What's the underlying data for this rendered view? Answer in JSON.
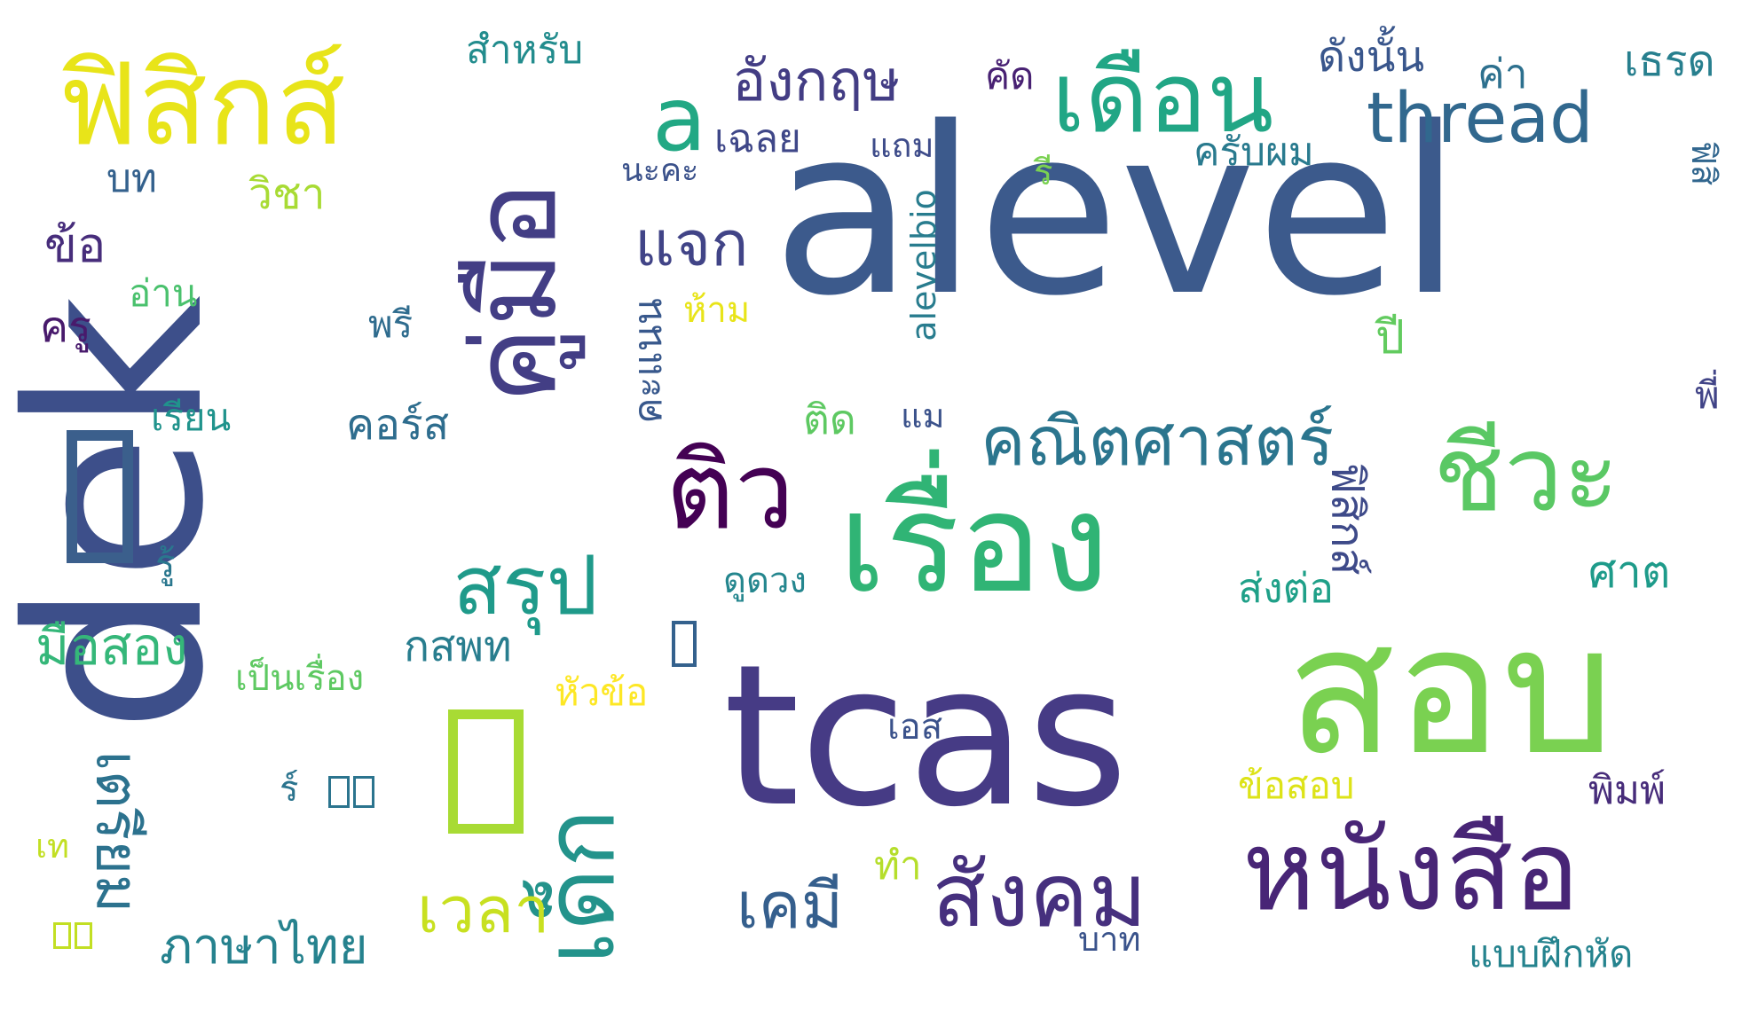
{
  "words": [
    {
      "text": "dek",
      "color": "#3d4f8a",
      "rotate": -90
    },
    {
      "text": "alevel",
      "color": "#3c5a8c",
      "rotate": 0
    },
    {
      "text": "สอบ",
      "color": "#7ad151",
      "rotate": 0
    },
    {
      "text": "tcas",
      "color": "#463b85",
      "rotate": 0
    },
    {
      "text": "เรื่อง",
      "color": "#30b475",
      "rotate": 0
    },
    {
      "text": "คู่มือ",
      "color": "#433e85",
      "rotate": -90
    },
    {
      "text": "ฟิสิกส์",
      "color": "#e8e419",
      "rotate": 0
    },
    {
      "text": "หนังสือ",
      "color": "#482576",
      "rotate": 0
    },
    {
      "text": "ชีวะ",
      "color": "#5ac864",
      "rotate": 0
    },
    {
      "text": "เดือน",
      "color": "#21a685",
      "rotate": 0
    },
    {
      "text": "ติว",
      "color": "#440154",
      "rotate": 0
    },
    {
      "text": "เด็ก",
      "color": "#23938b",
      "rotate": -90
    },
    {
      "text": "สังคม",
      "color": "#46307e",
      "rotate": 0
    },
    {
      "text": "สรุป",
      "color": "#1f9a8a",
      "rotate": 0
    },
    {
      "text": "คณิตศาสตร์",
      "color": "#2b758e",
      "rotate": 0
    },
    {
      "text": "a",
      "color": "#22a884",
      "rotate": 0
    },
    {
      "text": "thread",
      "color": "#31688e",
      "rotate": 0
    },
    {
      "text": "อังกฤษ",
      "color": "#433d84",
      "rotate": 0
    },
    {
      "text": "แจก",
      "color": "#414487",
      "rotate": 0
    },
    {
      "text": "เคมี",
      "color": "#355f8d",
      "rotate": 0
    },
    {
      "text": "เวลา",
      "color": "#c8e020",
      "rotate": 0
    },
    {
      "text": "เตรียม",
      "color": "#2c728e",
      "rotate": 90
    },
    {
      "text": "ภาษาไทย",
      "color": "#26828e",
      "rotate": 0
    },
    {
      "text": "มือสอง",
      "color": "#35b779",
      "rotate": 0
    },
    {
      "text": "ฟิสิกส์",
      "color": "#3e4a89",
      "rotate": 90
    },
    {
      "text": "คะแนน",
      "color": "#38588c",
      "rotate": -90
    },
    {
      "text": "เฉลย",
      "color": "#3f4788",
      "rotate": 0
    },
    {
      "text": "กสพท",
      "color": "#287d8e",
      "rotate": 0
    },
    {
      "text": "คอร์ส",
      "color": "#2e6d8e",
      "rotate": 0
    },
    {
      "text": "ข้อสอบ",
      "color": "#dde318",
      "rotate": 0
    },
    {
      "text": "ส่งต่อ",
      "color": "#1fa088",
      "rotate": 0
    },
    {
      "text": "ศาต",
      "color": "#1e9b8a",
      "rotate": 0
    },
    {
      "text": "ครับผม",
      "color": "#297a8e",
      "rotate": 0
    },
    {
      "text": "ดังนั้น",
      "color": "#39568c",
      "rotate": 0
    },
    {
      "text": "ค่า",
      "color": "#2d708e",
      "rotate": 0
    },
    {
      "text": "เธรด",
      "color": "#277f8e",
      "rotate": 0
    },
    {
      "text": "สำหรับ",
      "color": "#228c8d",
      "rotate": 0
    },
    {
      "text": "คัด",
      "color": "#482173",
      "rotate": 0
    },
    {
      "text": "วิชา",
      "color": "#a8db34",
      "rotate": 0
    },
    {
      "text": "ข้อ",
      "color": "#472d7b",
      "rotate": 0
    },
    {
      "text": "บท",
      "color": "#34618d",
      "rotate": 0
    },
    {
      "text": "ครู",
      "color": "#481a6c",
      "rotate": 0
    },
    {
      "text": "อ่าน",
      "color": "#4ac16d",
      "rotate": 0
    },
    {
      "text": "พรี",
      "color": "#2f6c8e",
      "rotate": 0
    },
    {
      "text": "เรียน",
      "color": "#20938c",
      "rotate": 0
    },
    {
      "text": "นะคะ",
      "color": "#3b528b",
      "rotate": 0
    },
    {
      "text": "แถม",
      "color": "#3e4c8a",
      "rotate": 0
    },
    {
      "text": "รี",
      "color": "#7ad151",
      "rotate": 0
    },
    {
      "text": "ห้าม",
      "color": "#e8e419",
      "rotate": 0
    },
    {
      "text": "ปี",
      "color": "#62cb5f",
      "rotate": 0
    },
    {
      "text": "ติด",
      "color": "#5ec962",
      "rotate": 0
    },
    {
      "text": "แม",
      "color": "#3b528b",
      "rotate": 0
    },
    {
      "text": "alevelbio",
      "color": "#287c8e",
      "rotate": -90
    },
    {
      "text": "พี่",
      "color": "#414487",
      "rotate": 0
    },
    {
      "text": "ฟิสิ",
      "color": "#31668e",
      "rotate": 90
    },
    {
      "text": "ดูดวง",
      "color": "#24868e",
      "rotate": 0
    },
    {
      "text": "รู้",
      "color": "#2a778e",
      "rotate": 0
    },
    {
      "text": "เป็นเรื่อง",
      "color": "#5ec962",
      "rotate": 0
    },
    {
      "text": "หัวข้อ",
      "color": "#fde725",
      "rotate": 0
    },
    {
      "text": "เอส",
      "color": "#3b528b",
      "rotate": 0
    },
    {
      "text": "ร์",
      "color": "#2b748e",
      "rotate": 0
    },
    {
      "text": "เท",
      "color": "#c2df23",
      "rotate": 0
    },
    {
      "text": "ทำ",
      "color": "#b5de2b",
      "rotate": 0
    },
    {
      "text": "บาท",
      "color": "#3a538b",
      "rotate": 0
    },
    {
      "text": "พิมพ์",
      "color": "#472c7a",
      "rotate": 0
    },
    {
      "text": "แบบฝึกหัด",
      "color": "#25838e",
      "rotate": 0
    }
  ]
}
